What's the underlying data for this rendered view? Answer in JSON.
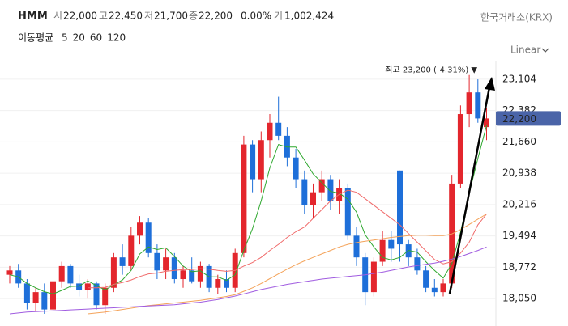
{
  "header": {
    "name": "HMM",
    "fields": [
      {
        "label": "시",
        "value": "22,000"
      },
      {
        "label": "고",
        "value": "22,450"
      },
      {
        "label": "저",
        "value": "21,700"
      },
      {
        "label": "종",
        "value": "22,200"
      }
    ],
    "change": "0.00%",
    "volume_label": "거",
    "volume": "1,002,424",
    "exchange": "한국거래소(KRX)",
    "ma_label": "이동평균",
    "scale": "Linear"
  },
  "chart_data": {
    "type": "candlestick",
    "open": [
      18600,
      18700,
      18400,
      17950,
      18200,
      17800,
      18450,
      18800,
      18400,
      18250,
      18400,
      17900,
      18300,
      19000,
      18800,
      19500,
      19800,
      19100,
      18700,
      19000,
      18500,
      18700,
      18450,
      18800,
      18300,
      18500,
      18300,
      19100,
      21600,
      20800,
      21700,
      22100,
      21800,
      21300,
      20800,
      20200,
      20500,
      20800,
      20300,
      20600,
      19500,
      19000,
      18200,
      18900,
      19400,
      21000,
      19300,
      19000,
      18700,
      18300,
      18200,
      18400,
      20700,
      22300,
      22800,
      22000
    ],
    "high": [
      18800,
      18850,
      18500,
      18300,
      18400,
      18500,
      18900,
      18850,
      18600,
      18500,
      18450,
      18400,
      19100,
      19300,
      19700,
      19950,
      19900,
      19300,
      19200,
      19100,
      18800,
      19000,
      18900,
      18850,
      18600,
      18700,
      19200,
      21800,
      21700,
      21900,
      22300,
      22700,
      22000,
      21500,
      21000,
      20700,
      21000,
      20900,
      20800,
      20700,
      19700,
      19100,
      19000,
      19600,
      19600,
      21000,
      19400,
      19200,
      18800,
      18500,
      18500,
      20900,
      22500,
      23200,
      23100,
      22450
    ],
    "low": [
      18400,
      18300,
      17800,
      17750,
      17700,
      17750,
      18300,
      18300,
      18100,
      18050,
      17800,
      17700,
      18200,
      18600,
      18700,
      19300,
      19000,
      18500,
      18500,
      18400,
      18300,
      18400,
      18300,
      18200,
      18150,
      18200,
      18200,
      19000,
      20500,
      20500,
      21300,
      21700,
      21100,
      20600,
      20000,
      19900,
      20300,
      20100,
      20000,
      19400,
      18800,
      17900,
      18100,
      18800,
      18900,
      18900,
      18800,
      18600,
      18200,
      18100,
      18100,
      18300,
      20600,
      22000,
      22100,
      21700
    ],
    "close": [
      18700,
      18400,
      17950,
      18200,
      17800,
      18450,
      18800,
      18400,
      18250,
      18400,
      17900,
      18300,
      19000,
      18800,
      19500,
      19800,
      19100,
      18700,
      19000,
      18500,
      18700,
      18450,
      18800,
      18300,
      18500,
      18300,
      19100,
      21600,
      20800,
      21700,
      22100,
      21800,
      21300,
      20800,
      20200,
      20500,
      20800,
      20300,
      20600,
      19500,
      19000,
      18200,
      18900,
      19400,
      19200,
      19300,
      19000,
      18700,
      18300,
      18200,
      18400,
      20700,
      22300,
      22800,
      22200,
      22200
    ],
    "up_color": "#e3262d",
    "down_color": "#1e6fd9",
    "series": [
      {
        "name": "5",
        "color": "#2fa82f",
        "values": [
          18600,
          18550,
          18400,
          18300,
          18210,
          18160,
          18240,
          18330,
          18340,
          18460,
          18350,
          18250,
          18370,
          18480,
          18700,
          19080,
          19240,
          19180,
          19220,
          19020,
          18800,
          18670,
          18690,
          18550,
          18550,
          18470,
          18600,
          19160,
          19660,
          20300,
          21060,
          21600,
          21540,
          21540,
          21240,
          20920,
          20720,
          20520,
          20480,
          20340,
          20040,
          19520,
          19240,
          19000,
          18940,
          19000,
          19160,
          19120,
          18900,
          18700,
          18520,
          18860,
          19580,
          20480,
          21280,
          22040
        ]
      },
      {
        "name": "20",
        "color": "#f06a6a",
        "values": [
          null,
          null,
          null,
          null,
          null,
          null,
          null,
          null,
          null,
          18300,
          18300,
          18310,
          18380,
          18420,
          18480,
          18560,
          18620,
          18640,
          18680,
          18700,
          18720,
          18720,
          18740,
          18730,
          18700,
          18680,
          18700,
          18800,
          18880,
          19000,
          19160,
          19300,
          19460,
          19590,
          19700,
          19900,
          20100,
          20300,
          20450,
          20550,
          20500,
          20350,
          20200,
          20050,
          19900,
          19750,
          19550,
          19350,
          19150,
          18950,
          18850,
          18900,
          19100,
          19350,
          19750,
          20000
        ]
      },
      {
        "name": "60",
        "color": "#f4a35a",
        "values": [
          null,
          null,
          null,
          null,
          null,
          null,
          null,
          null,
          null,
          17700,
          17720,
          17740,
          17770,
          17800,
          17830,
          17860,
          17890,
          17910,
          17930,
          17950,
          17970,
          17990,
          18010,
          18040,
          18070,
          18100,
          18140,
          18220,
          18300,
          18400,
          18510,
          18620,
          18730,
          18830,
          18920,
          19000,
          19080,
          19160,
          19240,
          19300,
          19340,
          19370,
          19400,
          19430,
          19460,
          19480,
          19500,
          19510,
          19510,
          19500,
          19500,
          19540,
          19640,
          19760,
          19880,
          20000
        ]
      },
      {
        "name": "120",
        "color": "#a05ce0",
        "values": [
          17700,
          17720,
          17740,
          17750,
          17760,
          17770,
          17780,
          17790,
          17800,
          17810,
          17820,
          17830,
          17840,
          17850,
          17860,
          17870,
          17880,
          17890,
          17900,
          17910,
          17930,
          17950,
          17970,
          18000,
          18030,
          18070,
          18110,
          18160,
          18210,
          18260,
          18300,
          18340,
          18380,
          18410,
          18440,
          18470,
          18500,
          18520,
          18540,
          18560,
          18580,
          18600,
          18630,
          18660,
          18700,
          18740,
          18780,
          18810,
          18840,
          18870,
          18910,
          18960,
          19020,
          19090,
          19160,
          19240
        ]
      }
    ],
    "ylim": [
      17420,
      23530
    ],
    "yticks": [
      {
        "value": 18050,
        "label": "18,050"
      },
      {
        "value": 18772,
        "label": "18,772"
      },
      {
        "value": 19494,
        "label": "19,494"
      },
      {
        "value": 20216,
        "label": "20,216"
      },
      {
        "value": 20938,
        "label": "20,938"
      },
      {
        "value": 21660,
        "label": "21,660"
      },
      {
        "value": 22382,
        "label": "22,382"
      },
      {
        "value": 23104,
        "label": "23,104"
      }
    ],
    "grid": true,
    "current_price": {
      "value": 22200,
      "label": "22,200",
      "color": "#4a64a8"
    },
    "annotation": "최고 23,200 (-4.31%) ▼"
  }
}
